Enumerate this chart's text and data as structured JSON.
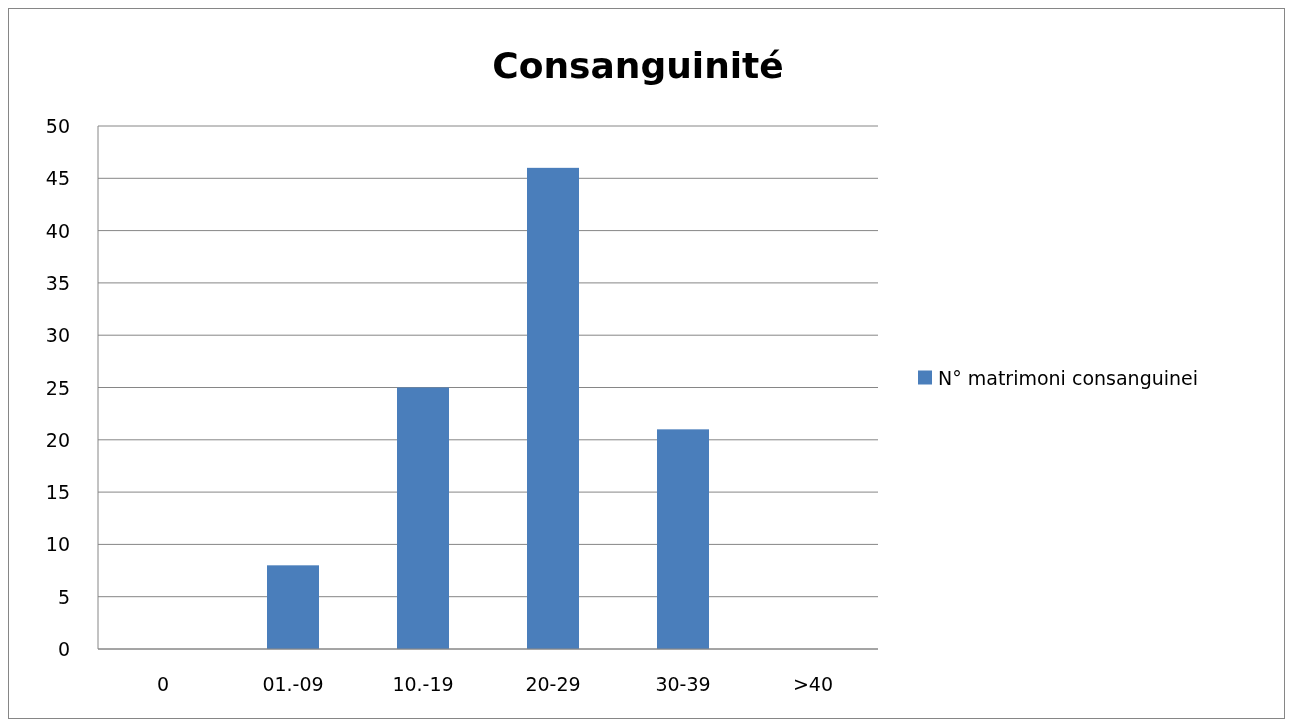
{
  "chart_data": {
    "type": "bar",
    "title": "Consanguinité",
    "categories": [
      "0",
      "01.-09",
      "10.-19",
      "20-29",
      "30-39",
      ">40"
    ],
    "series": [
      {
        "name": "N° matrimoni consanguinei",
        "color": "#4a7ebb",
        "values": [
          0,
          8,
          25,
          46,
          21,
          0
        ]
      }
    ],
    "ylim": [
      0,
      50
    ],
    "yticks": [
      0,
      5,
      10,
      15,
      20,
      25,
      30,
      35,
      40,
      45,
      50
    ],
    "grid": "y",
    "legend": "right"
  }
}
